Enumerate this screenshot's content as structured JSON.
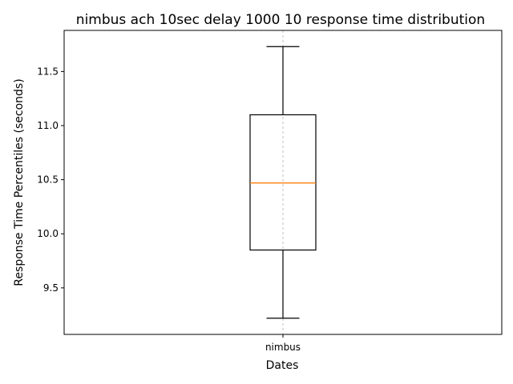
{
  "chart_data": {
    "type": "box",
    "title": "nimbus ach 10sec delay 1000 10 response time distribution",
    "xlabel": "Dates",
    "ylabel": "Response Time Percentiles (seconds)",
    "categories": [
      "nimbus"
    ],
    "boxes": [
      {
        "label": "nimbus",
        "whisker_low": 9.22,
        "q1": 9.85,
        "median": 10.47,
        "q3": 11.1,
        "whisker_high": 11.73
      }
    ],
    "ylim": [
      9.07,
      11.88
    ],
    "yticks": [
      9.5,
      10.0,
      10.5,
      11.0,
      11.5
    ],
    "ytick_labels": [
      "9.5",
      "10.0",
      "10.5",
      "11.0",
      "11.5"
    ],
    "grid": "x-dashed",
    "colors": {
      "box": "#000000",
      "median": "#ff7f0e",
      "grid": "#b0b0b0"
    }
  }
}
